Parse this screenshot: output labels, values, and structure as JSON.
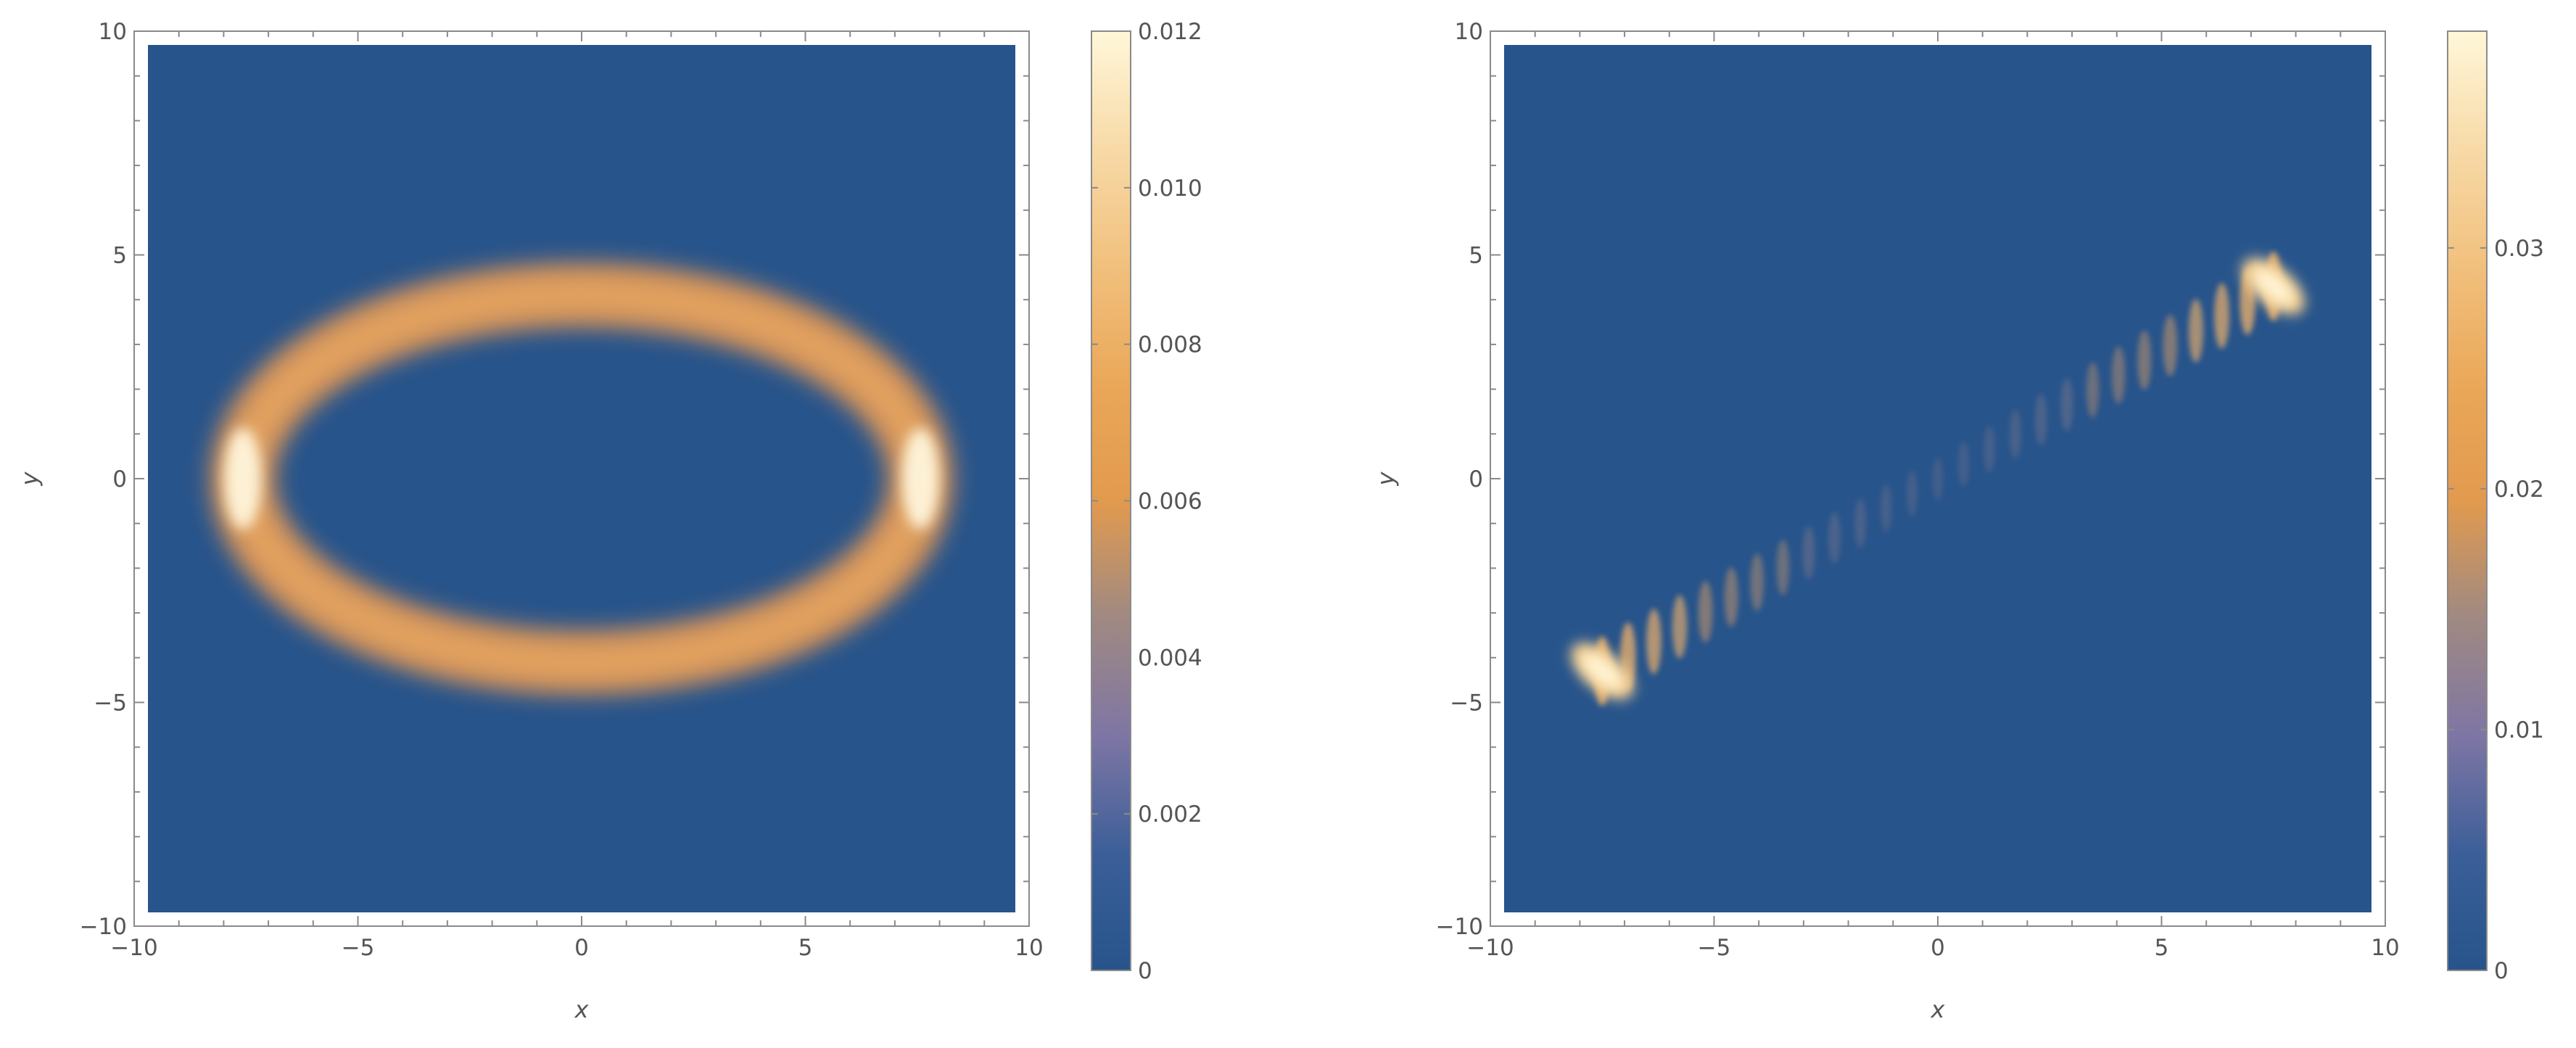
{
  "chart_data": [
    {
      "type": "heatmap",
      "title": "",
      "xlabel": "x",
      "ylabel": "y",
      "xlim": [
        -10,
        10
      ],
      "ylim": [
        -10,
        10
      ],
      "x_ticks": [
        -10,
        -5,
        0,
        5,
        10
      ],
      "y_ticks": [
        -10,
        -5,
        0,
        5,
        10
      ],
      "x_tick_labels": [
        "−10",
        "−5",
        "0",
        "5",
        "10"
      ],
      "y_tick_labels": [
        "−10",
        "−5",
        "0",
        "5",
        "10"
      ],
      "colorbar": {
        "min": 0,
        "max": 0.012,
        "ticks": [
          0,
          0.002,
          0.004,
          0.006,
          0.008,
          0.01,
          0.012
        ],
        "tick_labels": [
          "0",
          "0.002",
          "0.004",
          "0.006",
          "0.008",
          "0.010",
          "0.012"
        ]
      },
      "feature": {
        "shape": "elliptical ring",
        "center": [
          0,
          0
        ],
        "semi_axis_x": 7.8,
        "semi_axis_y": 4.3,
        "peak_value": 0.012,
        "peak_locations": [
          [
            -7.8,
            0
          ],
          [
            7.8,
            0
          ]
        ],
        "typical_ring_value": 0.0065
      }
    },
    {
      "type": "heatmap",
      "title": "",
      "xlabel": "x",
      "ylabel": "y",
      "xlim": [
        -10,
        10
      ],
      "ylim": [
        -10,
        10
      ],
      "x_ticks": [
        -10,
        -5,
        0,
        5,
        10
      ],
      "y_ticks": [
        -10,
        -5,
        0,
        5,
        10
      ],
      "x_tick_labels": [
        "−10",
        "−5",
        "0",
        "5",
        "10"
      ],
      "y_tick_labels": [
        "−10",
        "−5",
        "0",
        "5",
        "10"
      ],
      "colorbar": {
        "min": 0,
        "max": 0.039,
        "ticks": [
          0,
          0.01,
          0.02,
          0.03
        ],
        "tick_labels": [
          "0",
          "0.01",
          "0.02",
          "0.03"
        ]
      },
      "feature": {
        "shape": "diagonal interference band",
        "start": [
          -7.5,
          -4.3
        ],
        "end": [
          7.5,
          4.3
        ],
        "peak_value": 0.039,
        "peak_locations": [
          [
            -7.5,
            -4.3
          ],
          [
            7.5,
            4.3
          ]
        ],
        "fringe_count": 27
      }
    }
  ]
}
